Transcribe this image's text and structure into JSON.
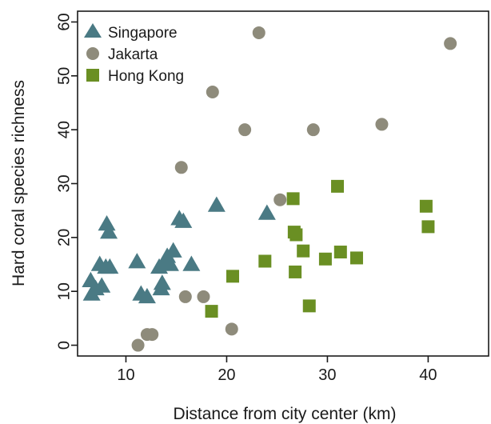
{
  "chart_data": {
    "type": "scatter",
    "xlabel": "Distance from city center (km)",
    "ylabel": "Hard coral species richness",
    "xlim": [
      5.2,
      46
    ],
    "ylim": [
      -2,
      62
    ],
    "xticks": [
      10,
      20,
      30,
      40
    ],
    "yticks": [
      0,
      10,
      20,
      30,
      40,
      50,
      60
    ],
    "legend_position": "top-left",
    "grid": false,
    "series": [
      {
        "name": "Singapore",
        "marker": "triangle",
        "color": "#4a7a84",
        "points": [
          [
            6.5,
            12
          ],
          [
            6.6,
            9.5
          ],
          [
            7.0,
            10.5
          ],
          [
            7.4,
            15
          ],
          [
            7.6,
            11
          ],
          [
            8.0,
            14.5
          ],
          [
            8.1,
            22.5
          ],
          [
            8.3,
            21
          ],
          [
            8.4,
            14.5
          ],
          [
            11.1,
            15.5
          ],
          [
            11.5,
            9.5
          ],
          [
            12.1,
            9
          ],
          [
            13.3,
            14.5
          ],
          [
            13.5,
            10.5
          ],
          [
            13.6,
            11.5
          ],
          [
            13.9,
            15.5
          ],
          [
            14.1,
            16.5
          ],
          [
            14.4,
            15
          ],
          [
            14.7,
            17.5
          ],
          [
            15.3,
            23.5
          ],
          [
            15.7,
            23
          ],
          [
            16.5,
            15
          ],
          [
            19.0,
            26
          ],
          [
            24.0,
            24.5
          ]
        ]
      },
      {
        "name": "Jakarta",
        "marker": "circle",
        "color": "#8e8b7b",
        "points": [
          [
            11.2,
            0
          ],
          [
            12.1,
            2
          ],
          [
            12.6,
            2
          ],
          [
            15.5,
            33
          ],
          [
            15.9,
            9
          ],
          [
            17.7,
            9
          ],
          [
            18.6,
            47
          ],
          [
            20.5,
            3
          ],
          [
            21.8,
            40
          ],
          [
            23.2,
            58
          ],
          [
            25.3,
            27
          ],
          [
            28.6,
            40
          ],
          [
            35.4,
            41
          ],
          [
            42.2,
            56
          ]
        ]
      },
      {
        "name": "Hong Kong",
        "marker": "square",
        "color": "#6a8f23",
        "points": [
          [
            18.5,
            6.3
          ],
          [
            20.6,
            12.8
          ],
          [
            23.8,
            15.6
          ],
          [
            26.6,
            27.2
          ],
          [
            26.7,
            21
          ],
          [
            26.8,
            13.6
          ],
          [
            26.9,
            20.5
          ],
          [
            27.6,
            17.5
          ],
          [
            28.2,
            7.3
          ],
          [
            29.8,
            16
          ],
          [
            31.0,
            29.5
          ],
          [
            31.3,
            17.3
          ],
          [
            32.9,
            16.2
          ],
          [
            39.8,
            25.8
          ],
          [
            40.0,
            22
          ]
        ]
      }
    ]
  }
}
